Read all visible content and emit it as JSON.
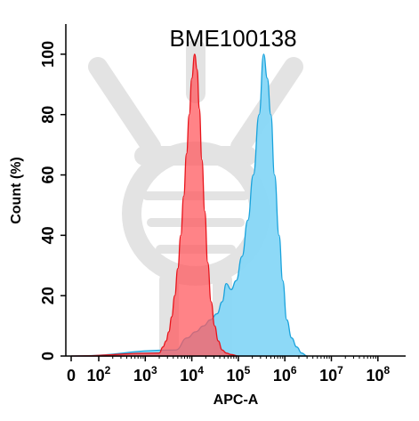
{
  "chart_data": {
    "type": "area",
    "title": "BME100138",
    "xlabel": "APC-A",
    "ylabel": "Count  (%)",
    "x_scale": "biexponential",
    "xlim": [
      -100,
      100000000
    ],
    "ylim": [
      0,
      110
    ],
    "x_ticks": [
      {
        "base": "0",
        "exp": ""
      },
      {
        "base": "10",
        "exp": "2"
      },
      {
        "base": "10",
        "exp": "3"
      },
      {
        "base": "10",
        "exp": "4"
      },
      {
        "base": "10",
        "exp": "5"
      },
      {
        "base": "10",
        "exp": "6"
      },
      {
        "base": "10",
        "exp": "7"
      },
      {
        "base": "10",
        "exp": "8"
      }
    ],
    "y_ticks": [
      "0",
      "20",
      "40",
      "60",
      "80",
      "100"
    ],
    "grid": false,
    "series": [
      {
        "color": "#ff5a5f",
        "stroke": "#e8141b",
        "x": [
          0,
          2000,
          2400,
          2800,
          3200,
          3700,
          4300,
          5000,
          5800,
          6700,
          7700,
          8800,
          10000,
          11500,
          13000,
          14500,
          16500,
          19000,
          22000,
          26000,
          31000,
          37000,
          45000,
          55000,
          70000,
          100000
        ],
        "values": [
          0,
          1,
          3,
          5,
          8,
          13,
          20,
          29,
          40,
          53,
          67,
          80,
          92,
          100,
          95,
          82,
          65,
          48,
          31,
          18,
          10,
          5,
          2,
          1,
          0.5,
          0
        ]
      },
      {
        "color": "#87d7f7",
        "stroke": "#1aa3dc",
        "x": [
          0,
          4500,
          8000,
          12000,
          18000,
          25000,
          35000,
          45000,
          55000,
          70000,
          90000,
          120000,
          160000,
          210000,
          280000,
          350000,
          420000,
          500000,
          600000,
          750000,
          900000,
          1100000,
          1400000,
          1800000,
          2300000,
          3000000
        ],
        "values": [
          0,
          2,
          6,
          8,
          10,
          12,
          14,
          18,
          24,
          22,
          25,
          33,
          45,
          60,
          80,
          100,
          92,
          80,
          60,
          40,
          25,
          12,
          6,
          3,
          1,
          0
        ]
      }
    ]
  }
}
